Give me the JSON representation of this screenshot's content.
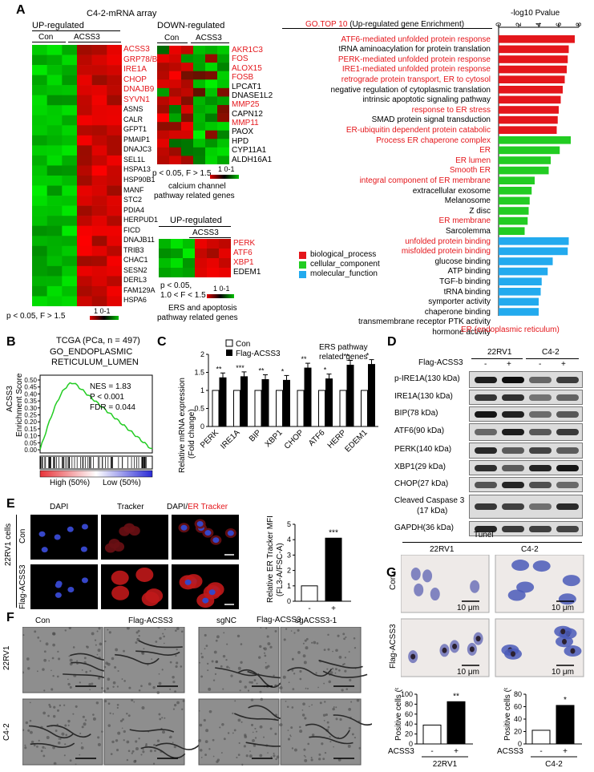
{
  "panels": {
    "A": "A",
    "B": "B",
    "C": "C",
    "D": "D",
    "E": "E",
    "F": "F",
    "G": "G"
  },
  "panelA": {
    "title": "C4-2-mRNA array",
    "up_header": "UP-regulated",
    "down_header": "DOWN-regulated",
    "con": "Con",
    "acss3": "ACSS3",
    "up_genes_red": [
      "ACSS3",
      "GRP78/BIP",
      "IRE1A",
      "CHOP",
      "DNAJB9",
      "SYVN1"
    ],
    "up_genes_black": [
      "ASNS",
      "CALR",
      "GFPT1",
      "PMAIP1",
      "DNAJC3",
      "SEL1L",
      "HSPA13",
      "HSP90B1",
      "MANF",
      "STC2",
      "PDIA4",
      "HERPUD1",
      "FICD",
      "DNAJB11",
      "TRIB3",
      "CHAC1",
      "SESN2",
      "DERL3",
      "FAM129A",
      "HSPA6"
    ],
    "up_pval": "p < 0.05, F > 1.5",
    "scale": "1 0-1",
    "down_genes_red": [
      "AKR1C3",
      "FOS",
      "ALOX15",
      "FOSB"
    ],
    "down_genes_black1": [
      "LPCAT1",
      "DNASE1L2"
    ],
    "down_genes_red2": [
      "MMP25"
    ],
    "down_genes_black2": [
      "CAPN12"
    ],
    "down_genes_red3": [
      "MMP11"
    ],
    "down_genes_black3": [
      "PAOX",
      "HPD",
      "CYP11A1",
      "ALDH16A1"
    ],
    "down_pval": "p < 0.05, F > 1.5",
    "down_caption1": "calcium channel",
    "down_caption2": "pathway related genes",
    "ers_header": "UP-regulated",
    "ers_genes_red": [
      "PERK",
      "ATF6",
      "XBP1"
    ],
    "ers_genes_black": [
      "EDEM1"
    ],
    "ers_pval1": "p < 0.05,",
    "ers_pval2": "1.0 < F < 1.5",
    "ers_caption1": "ERS and apoptosis",
    "ers_caption2": "pathway related genes",
    "go_title_red": "GO.TOP 10",
    "go_title_black": "(Up-regulated gene Enrichment)",
    "go_axis_title": "-log10 Pvalue",
    "go_ticks": [
      "0",
      "2",
      "4",
      "6",
      "8"
    ],
    "go_footer": "ER (endoplasmic reticulum)",
    "legend": [
      {
        "label": "biological_process",
        "color": "#e4161b"
      },
      {
        "label": "cellular_component",
        "color": "#22cc22"
      },
      {
        "label": "molecular_function",
        "color": "#22aaee"
      }
    ]
  },
  "go_terms": [
    {
      "label": "ATF6-mediated unfolded protein response",
      "red": true,
      "cat": "bp",
      "value": 7.6
    },
    {
      "label": "tRNA aminoacylation for protein translation",
      "red": false,
      "cat": "bp",
      "value": 7.0
    },
    {
      "label": "PERK-mediated unfolded protein response",
      "red": true,
      "cat": "bp",
      "value": 6.9
    },
    {
      "label": "IRE1-mediated unfolded protein response",
      "red": true,
      "cat": "bp",
      "value": 6.8
    },
    {
      "label": "retrograde protein transport, ER to cytosol",
      "red": true,
      "cat": "bp",
      "value": 6.6
    },
    {
      "label": "negative regulation of cytoplasmic translation",
      "red": false,
      "cat": "bp",
      "value": 6.4
    },
    {
      "label": "intrinsic apoptotic signaling pathway",
      "red": false,
      "cat": "bp",
      "value": 6.2
    },
    {
      "label": "response to ER stress",
      "red": true,
      "cat": "bp",
      "value": 6.0
    },
    {
      "label": "SMAD protein signal transduction",
      "red": false,
      "cat": "bp",
      "value": 5.9
    },
    {
      "label": "ER-ubiquitin dependent protein catabolic",
      "red": true,
      "cat": "bp",
      "value": 5.8
    },
    {
      "label": "Process ER chaperone complex",
      "red": true,
      "cat": "cc",
      "value": 7.2
    },
    {
      "label": "ER",
      "red": true,
      "cat": "cc",
      "value": 6.1
    },
    {
      "label": "ER lumen",
      "red": true,
      "cat": "cc",
      "value": 5.2
    },
    {
      "label": "Smooth ER",
      "red": true,
      "cat": "cc",
      "value": 5.0
    },
    {
      "label": "integral component of ER membrane",
      "red": true,
      "cat": "cc",
      "value": 3.6
    },
    {
      "label": "extracellular exosome",
      "red": false,
      "cat": "cc",
      "value": 3.3
    },
    {
      "label": "Melanosome",
      "red": false,
      "cat": "cc",
      "value": 3.1
    },
    {
      "label": "Z disc",
      "red": false,
      "cat": "cc",
      "value": 3.0
    },
    {
      "label": "ER membrane",
      "red": true,
      "cat": "cc",
      "value": 2.9
    },
    {
      "label": "Sarcolemma",
      "red": false,
      "cat": "cc",
      "value": 2.6
    },
    {
      "label": "unfolded protein binding",
      "red": true,
      "cat": "mf",
      "value": 7.0
    },
    {
      "label": "misfolded protein binding",
      "red": true,
      "cat": "mf",
      "value": 6.9
    },
    {
      "label": "glucose binding",
      "red": false,
      "cat": "mf",
      "value": 5.4
    },
    {
      "label": "ATP binding",
      "red": false,
      "cat": "mf",
      "value": 4.9
    },
    {
      "label": "TGF-b binding",
      "red": false,
      "cat": "mf",
      "value": 4.3
    },
    {
      "label": "tRNA binding",
      "red": false,
      "cat": "mf",
      "value": 4.2
    },
    {
      "label": "symporter activity",
      "red": false,
      "cat": "mf",
      "value": 4.0
    },
    {
      "label": "chaperone binding",
      "red": false,
      "cat": "mf",
      "value": 4.0
    },
    {
      "label": "transmembrane receptor PTK activity",
      "red": false,
      "cat": "mf",
      "value": 3.9
    },
    {
      "label": "hormone activity",
      "red": false,
      "cat": "mf",
      "value": 3.9
    }
  ],
  "panelB": {
    "title1": "TCGA (PCa, n = 497)",
    "title2": "GO_ENDOPLASMIC",
    "title3": "RETICULUM_LUMEN",
    "ylabel1": "ACSS3",
    "ylabel2": "Enrichment Score",
    "yticks": [
      "0.50",
      "0.45",
      "0.40",
      "0.35",
      "0.30",
      "0.25",
      "0.20",
      "0.15",
      "0.10",
      "0.05",
      "0.00"
    ],
    "nes": "NES = 1.83",
    "p": "P  < 0.001",
    "fdr": "FDR = 0.044",
    "high": "High (50%)",
    "low": "Low (50%)"
  },
  "chart_data": [
    {
      "type": "bar",
      "title": "",
      "legend": [
        "Con",
        "Flag-ACSS3"
      ],
      "annotation": "ERS pathway related genes",
      "ylabel": "Relative mRNA expression (Fold change)",
      "ylim": [
        0,
        2
      ],
      "yticks": [
        "0",
        "0.5",
        "1",
        "1.5",
        "2"
      ],
      "categories": [
        "PERK",
        "IRE1A",
        "BIP",
        "XBP1",
        "CHOP",
        "ATF6",
        "HERP",
        "EDEM1"
      ],
      "series": [
        {
          "name": "Con",
          "values": [
            1,
            1,
            1,
            1,
            1,
            1,
            1,
            1
          ]
        },
        {
          "name": "Flag-ACSS3",
          "values": [
            1.35,
            1.38,
            1.3,
            1.28,
            1.62,
            1.32,
            1.7,
            1.72
          ]
        }
      ],
      "significance": [
        "**",
        "***",
        "**",
        "*",
        "**",
        "*",
        "**",
        "*"
      ]
    },
    {
      "type": "bar",
      "ylabel": "Relative ER Tracker MFI (FL3-A/FSC-A)",
      "ylim": [
        0,
        5
      ],
      "yticks": [
        "0",
        "1",
        "2",
        "3",
        "4",
        "5"
      ],
      "categories": [
        "-",
        "+"
      ],
      "xlabel": "Flag-ACSS3",
      "values": [
        1.0,
        4.1
      ],
      "significance": "***"
    },
    {
      "type": "bar",
      "ylabel": "Positive cells (%)",
      "ylim": [
        0,
        100
      ],
      "yticks": [
        "0",
        "20",
        "40",
        "60",
        "80",
        "100"
      ],
      "categories": [
        "-",
        "+"
      ],
      "xlabel": "ACSS3",
      "group": "22RV1",
      "values": [
        38,
        85
      ],
      "significance": "**"
    },
    {
      "type": "bar",
      "ylabel": "Positive cells (%)",
      "ylim": [
        0,
        80
      ],
      "yticks": [
        "0",
        "20",
        "40",
        "60",
        "80"
      ],
      "categories": [
        "-",
        "+"
      ],
      "xlabel": "ACSS3",
      "group": "C4-2",
      "values": [
        22,
        62
      ],
      "significance": "*"
    }
  ],
  "panelD": {
    "flag": "Flag-ACSS3",
    "c1": "22RV1",
    "c2": "C4-2",
    "signs": [
      "-",
      "+",
      "-",
      "+"
    ],
    "rows": [
      "p-IRE1A(130 kDa)",
      "IRE1A(130 kDa)",
      "BIP(78 kDa)",
      "ATF6(90 kDa)",
      "PERK(140 kDa)",
      "XBP1(29 kDa)",
      "CHOP(27 kDa)",
      "Cleaved Caspase 3",
      "(17 kDa)",
      "GAPDH(36 kDa)"
    ]
  },
  "panelE": {
    "dapi": "DAPI",
    "tracker": "Tracker",
    "merge_black": "DAPI/",
    "merge_red": "ER Tracker",
    "cells": "22RV1 cells",
    "con": "Con",
    "flag": "Flag-ACSS3"
  },
  "panelF": {
    "cols": [
      "Con",
      "Flag-ACSS3",
      "sgNC",
      "sgACSS3-1"
    ],
    "rows": [
      "22RV1",
      "C4-2"
    ]
  },
  "panelG": {
    "title": "Tunel",
    "c1": "22RV1",
    "c2": "C4-2",
    "con": "Con",
    "flag": "Flag-ACSS3",
    "scale": "10 μm"
  }
}
